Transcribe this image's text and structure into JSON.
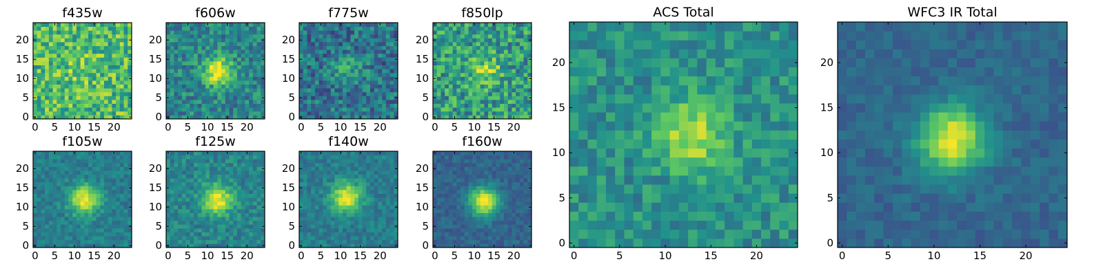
{
  "figure": {
    "colormap": "viridis",
    "colors": [
      "#440154",
      "#3b528b",
      "#21918c",
      "#5ec962",
      "#fde725"
    ]
  },
  "chart_data": [
    {
      "type": "heatmap",
      "title": "f435w",
      "grid_size": 25,
      "xlim": [
        0,
        24
      ],
      "ylim": [
        0,
        24
      ],
      "xticks": [
        0,
        5,
        10,
        15,
        20
      ],
      "yticks": [
        0,
        5,
        10,
        15,
        20
      ],
      "source_center": [
        12,
        12
      ],
      "source_peak": 0.12,
      "background_level": 0.68,
      "noise_level": 0.24
    },
    {
      "type": "heatmap",
      "title": "f606w",
      "grid_size": 25,
      "xlim": [
        0,
        24
      ],
      "ylim": [
        0,
        24
      ],
      "xticks": [
        0,
        5,
        10,
        15,
        20
      ],
      "yticks": [
        0,
        5,
        10,
        15,
        20
      ],
      "source_center": [
        12.5,
        12
      ],
      "source_peak": 0.55,
      "background_level": 0.45,
      "noise_level": 0.18
    },
    {
      "type": "heatmap",
      "title": "f775w",
      "grid_size": 25,
      "xlim": [
        0,
        24
      ],
      "ylim": [
        0,
        24
      ],
      "xticks": [
        0,
        5,
        10,
        15,
        20
      ],
      "yticks": [
        0,
        5,
        10,
        15,
        20
      ],
      "source_center": [
        12,
        12
      ],
      "source_peak": 0.2,
      "background_level": 0.38,
      "noise_level": 0.2
    },
    {
      "type": "heatmap",
      "title": "f850lp",
      "grid_size": 25,
      "xlim": [
        0,
        24
      ],
      "ylim": [
        0,
        24
      ],
      "xticks": [
        0,
        5,
        10,
        15,
        20
      ],
      "yticks": [
        0,
        5,
        10,
        15,
        20
      ],
      "source_center": [
        13,
        12
      ],
      "source_peak": 0.3,
      "background_level": 0.55,
      "noise_level": 0.24
    },
    {
      "type": "heatmap",
      "title": "f105w",
      "grid_size": 25,
      "xlim": [
        0,
        24
      ],
      "ylim": [
        0,
        24
      ],
      "xticks": [
        0,
        5,
        10,
        15,
        20
      ],
      "yticks": [
        0,
        5,
        10,
        15,
        20
      ],
      "source_center": [
        12.5,
        12
      ],
      "source_peak": 0.6,
      "background_level": 0.42,
      "noise_level": 0.1
    },
    {
      "type": "heatmap",
      "title": "f125w",
      "grid_size": 25,
      "xlim": [
        0,
        24
      ],
      "ylim": [
        0,
        24
      ],
      "xticks": [
        0,
        5,
        10,
        15,
        20
      ],
      "yticks": [
        0,
        5,
        10,
        15,
        20
      ],
      "source_center": [
        12.5,
        12
      ],
      "source_peak": 0.55,
      "background_level": 0.45,
      "noise_level": 0.12
    },
    {
      "type": "heatmap",
      "title": "f140w",
      "grid_size": 25,
      "xlim": [
        0,
        24
      ],
      "ylim": [
        0,
        24
      ],
      "xticks": [
        0,
        5,
        10,
        15,
        20
      ],
      "yticks": [
        0,
        5,
        10,
        15,
        20
      ],
      "source_center": [
        11.5,
        12.5
      ],
      "source_peak": 0.58,
      "background_level": 0.42,
      "noise_level": 0.1
    },
    {
      "type": "heatmap",
      "title": "f160w",
      "grid_size": 25,
      "xlim": [
        0,
        24
      ],
      "ylim": [
        0,
        24
      ],
      "xticks": [
        0,
        5,
        10,
        15,
        20
      ],
      "yticks": [
        0,
        5,
        10,
        15,
        20
      ],
      "source_center": [
        12.5,
        11.5
      ],
      "source_peak": 0.68,
      "background_level": 0.32,
      "noise_level": 0.08
    },
    {
      "type": "heatmap",
      "title": "ACS Total",
      "grid_size": 25,
      "xlim": [
        0,
        24
      ],
      "ylim": [
        0,
        24
      ],
      "xticks": [
        0,
        5,
        10,
        15,
        20
      ],
      "yticks": [
        0,
        5,
        10,
        15,
        20
      ],
      "source_center": [
        13,
        12
      ],
      "source_peak": 0.42,
      "background_level": 0.5,
      "noise_level": 0.14
    },
    {
      "type": "heatmap",
      "title": "WFC3 IR Total",
      "grid_size": 25,
      "xlim": [
        0,
        24
      ],
      "ylim": [
        0,
        24
      ],
      "xticks": [
        0,
        5,
        10,
        15,
        20
      ],
      "yticks": [
        0,
        5,
        10,
        15,
        20
      ],
      "source_center": [
        12,
        11.5
      ],
      "source_peak": 0.65,
      "background_level": 0.33,
      "noise_level": 0.07
    }
  ]
}
